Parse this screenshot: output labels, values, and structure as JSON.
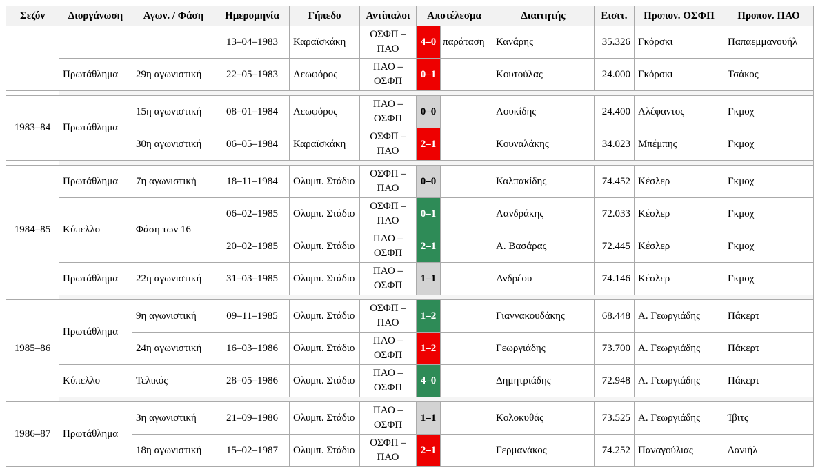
{
  "colors": {
    "win_osfp": "#ee0000",
    "win_pao": "#2e8b57",
    "draw": "#d3d3d3",
    "header_bg": "#f2f2f2",
    "border": "#aaaaaa",
    "separator_bg": "#f5f5f5"
  },
  "table": {
    "headers": [
      {
        "key": "season",
        "label": "Σεζόν"
      },
      {
        "key": "competition",
        "label": "Διοργάνωση"
      },
      {
        "key": "phase",
        "label": "Αγων. / Φάση"
      },
      {
        "key": "date",
        "label": "Ημερομηνία"
      },
      {
        "key": "venue",
        "label": "Γήπεδο"
      },
      {
        "key": "opponents",
        "label": "Αντίπαλοι"
      },
      {
        "key": "result",
        "label": "Αποτέλεσμα",
        "colspan": 2
      },
      {
        "key": "referee",
        "label": "Διαιτητής"
      },
      {
        "key": "tickets",
        "label": "Εισιτ."
      },
      {
        "key": "coach-osfp",
        "label": "Προπον. ΟΣΦΠ"
      },
      {
        "key": "coach-pao",
        "label": "Προπον. ΠΑΟ"
      }
    ],
    "sections": [
      {
        "rows": [
          [
            {
              "c": "season",
              "t": "",
              "rs": 2
            },
            {
              "c": "competition",
              "t": ""
            },
            {
              "c": "phase",
              "t": ""
            },
            {
              "c": "date",
              "t": "13–04–1983"
            },
            {
              "c": "venue",
              "t": "Καραϊσκάκη"
            },
            {
              "c": "opponents",
              "t": "ΟΣΦΠ – ΠΑΟ"
            },
            {
              "c": "score",
              "t": "4–0",
              "res": "osfp"
            },
            {
              "c": "note",
              "t": "παράταση"
            },
            {
              "c": "referee",
              "t": "Κανάρης"
            },
            {
              "c": "attendance",
              "t": "35.326"
            },
            {
              "c": "coach-osfp",
              "t": "Γκόρσκι"
            },
            {
              "c": "coach-pao",
              "t": "Παπαεμμανουήλ"
            }
          ],
          [
            {
              "c": "competition",
              "t": "Πρωτάθλημα"
            },
            {
              "c": "phase",
              "t": "29η αγωνιστική"
            },
            {
              "c": "date",
              "t": "22–05–1983"
            },
            {
              "c": "venue",
              "t": "Λεωφόρος"
            },
            {
              "c": "opponents",
              "t": "ΠΑΟ – ΟΣΦΠ"
            },
            {
              "c": "score",
              "t": "0–1",
              "res": "osfp"
            },
            {
              "c": "note",
              "t": ""
            },
            {
              "c": "referee",
              "t": "Κουτούλας"
            },
            {
              "c": "attendance",
              "t": "24.000"
            },
            {
              "c": "coach-osfp",
              "t": "Γκόρσκι"
            },
            {
              "c": "coach-pao",
              "t": "Τσάκος"
            }
          ]
        ]
      },
      {
        "rows": [
          [
            {
              "c": "season",
              "t": "1983–84",
              "rs": 2
            },
            {
              "c": "competition",
              "t": "Πρωτάθλημα",
              "rs": 2
            },
            {
              "c": "phase",
              "t": "15η αγωνιστική"
            },
            {
              "c": "date",
              "t": "08–01–1984"
            },
            {
              "c": "venue",
              "t": "Λεωφόρος"
            },
            {
              "c": "opponents",
              "t": "ΠΑΟ – ΟΣΦΠ"
            },
            {
              "c": "score",
              "t": "0–0",
              "res": "draw"
            },
            {
              "c": "note",
              "t": ""
            },
            {
              "c": "referee",
              "t": "Λουκίδης"
            },
            {
              "c": "attendance",
              "t": "24.400"
            },
            {
              "c": "coach-osfp",
              "t": "Αλέφαντος"
            },
            {
              "c": "coach-pao",
              "t": "Γκμοχ"
            }
          ],
          [
            {
              "c": "phase",
              "t": "30η αγωνιστική"
            },
            {
              "c": "date",
              "t": "06–05–1984"
            },
            {
              "c": "venue",
              "t": "Καραϊσκάκη"
            },
            {
              "c": "opponents",
              "t": "ΟΣΦΠ – ΠΑΟ"
            },
            {
              "c": "score",
              "t": "2–1",
              "res": "osfp"
            },
            {
              "c": "note",
              "t": ""
            },
            {
              "c": "referee",
              "t": "Κουναλάκης"
            },
            {
              "c": "attendance",
              "t": "34.023"
            },
            {
              "c": "coach-osfp",
              "t": "Μπέμπης"
            },
            {
              "c": "coach-pao",
              "t": "Γκμοχ"
            }
          ]
        ]
      },
      {
        "rows": [
          [
            {
              "c": "season",
              "t": "1984–85",
              "rs": 4
            },
            {
              "c": "competition",
              "t": "Πρωτάθλημα"
            },
            {
              "c": "phase",
              "t": "7η αγωνιστική"
            },
            {
              "c": "date",
              "t": "18–11–1984"
            },
            {
              "c": "venue",
              "t": "Ολυμπ. Στάδιο"
            },
            {
              "c": "opponents",
              "t": "ΟΣΦΠ – ΠΑΟ"
            },
            {
              "c": "score",
              "t": "0–0",
              "res": "draw"
            },
            {
              "c": "note",
              "t": ""
            },
            {
              "c": "referee",
              "t": "Καλπακίδης"
            },
            {
              "c": "attendance",
              "t": "74.452"
            },
            {
              "c": "coach-osfp",
              "t": "Κέσλερ"
            },
            {
              "c": "coach-pao",
              "t": "Γκμοχ"
            }
          ],
          [
            {
              "c": "competition",
              "t": "Κύπελλο",
              "rs": 2
            },
            {
              "c": "phase",
              "t": "Φάση των 16",
              "rs": 2
            },
            {
              "c": "date",
              "t": "06–02–1985"
            },
            {
              "c": "venue",
              "t": "Ολυμπ. Στάδιο"
            },
            {
              "c": "opponents",
              "t": "ΟΣΦΠ – ΠΑΟ"
            },
            {
              "c": "score",
              "t": "0–1",
              "res": "pao"
            },
            {
              "c": "note",
              "t": ""
            },
            {
              "c": "referee",
              "t": "Λανδράκης"
            },
            {
              "c": "attendance",
              "t": "72.033"
            },
            {
              "c": "coach-osfp",
              "t": "Κέσλερ"
            },
            {
              "c": "coach-pao",
              "t": "Γκμοχ"
            }
          ],
          [
            {
              "c": "date",
              "t": "20–02–1985"
            },
            {
              "c": "venue",
              "t": "Ολυμπ. Στάδιο"
            },
            {
              "c": "opponents",
              "t": "ΠΑΟ – ΟΣΦΠ"
            },
            {
              "c": "score",
              "t": "2–1",
              "res": "pao"
            },
            {
              "c": "note",
              "t": ""
            },
            {
              "c": "referee",
              "t": "Α. Βασάρας"
            },
            {
              "c": "attendance",
              "t": "72.445"
            },
            {
              "c": "coach-osfp",
              "t": "Κέσλερ"
            },
            {
              "c": "coach-pao",
              "t": "Γκμοχ"
            }
          ],
          [
            {
              "c": "competition",
              "t": "Πρωτάθλημα"
            },
            {
              "c": "phase",
              "t": "22η αγωνιστική"
            },
            {
              "c": "date",
              "t": "31–03–1985"
            },
            {
              "c": "venue",
              "t": "Ολυμπ. Στάδιο"
            },
            {
              "c": "opponents",
              "t": "ΠΑΟ – ΟΣΦΠ"
            },
            {
              "c": "score",
              "t": "1–1",
              "res": "draw"
            },
            {
              "c": "note",
              "t": ""
            },
            {
              "c": "referee",
              "t": "Ανδρέου"
            },
            {
              "c": "attendance",
              "t": "74.146"
            },
            {
              "c": "coach-osfp",
              "t": "Κέσλερ"
            },
            {
              "c": "coach-pao",
              "t": "Γκμοχ"
            }
          ]
        ]
      },
      {
        "rows": [
          [
            {
              "c": "season",
              "t": "1985–86",
              "rs": 3
            },
            {
              "c": "competition",
              "t": "Πρωτάθλημα",
              "rs": 2
            },
            {
              "c": "phase",
              "t": "9η αγωνιστική"
            },
            {
              "c": "date",
              "t": "09–11–1985"
            },
            {
              "c": "venue",
              "t": "Ολυμπ. Στάδιο"
            },
            {
              "c": "opponents",
              "t": "ΟΣΦΠ – ΠΑΟ"
            },
            {
              "c": "score",
              "t": "1–2",
              "res": "pao"
            },
            {
              "c": "note",
              "t": ""
            },
            {
              "c": "referee",
              "t": "Γιαννακουδάκης"
            },
            {
              "c": "attendance",
              "t": "68.448"
            },
            {
              "c": "coach-osfp",
              "t": "Α. Γεωργιάδης"
            },
            {
              "c": "coach-pao",
              "t": "Πάκερτ"
            }
          ],
          [
            {
              "c": "phase",
              "t": "24η αγωνιστική"
            },
            {
              "c": "date",
              "t": "16–03–1986"
            },
            {
              "c": "venue",
              "t": "Ολυμπ. Στάδιο"
            },
            {
              "c": "opponents",
              "t": "ΠΑΟ – ΟΣΦΠ"
            },
            {
              "c": "score",
              "t": "1–2",
              "res": "osfp"
            },
            {
              "c": "note",
              "t": ""
            },
            {
              "c": "referee",
              "t": "Γεωργιάδης"
            },
            {
              "c": "attendance",
              "t": "73.700"
            },
            {
              "c": "coach-osfp",
              "t": "Α. Γεωργιάδης"
            },
            {
              "c": "coach-pao",
              "t": "Πάκερτ"
            }
          ],
          [
            {
              "c": "competition",
              "t": "Κύπελλο"
            },
            {
              "c": "phase",
              "t": "Τελικός"
            },
            {
              "c": "date",
              "t": "28–05–1986"
            },
            {
              "c": "venue",
              "t": "Ολυμπ. Στάδιο"
            },
            {
              "c": "opponents",
              "t": "ΠΑΟ – ΟΣΦΠ"
            },
            {
              "c": "score",
              "t": "4–0",
              "res": "pao"
            },
            {
              "c": "note",
              "t": ""
            },
            {
              "c": "referee",
              "t": "Δημητριάδης"
            },
            {
              "c": "attendance",
              "t": "72.948"
            },
            {
              "c": "coach-osfp",
              "t": "Α. Γεωργιάδης"
            },
            {
              "c": "coach-pao",
              "t": "Πάκερτ"
            }
          ]
        ]
      },
      {
        "rows": [
          [
            {
              "c": "season",
              "t": "1986–87",
              "rs": 2
            },
            {
              "c": "competition",
              "t": "Πρωτάθλημα",
              "rs": 2
            },
            {
              "c": "phase",
              "t": "3η αγωνιστική"
            },
            {
              "c": "date",
              "t": "21–09–1986"
            },
            {
              "c": "venue",
              "t": "Ολυμπ. Στάδιο"
            },
            {
              "c": "opponents",
              "t": "ΠΑΟ – ΟΣΦΠ"
            },
            {
              "c": "score",
              "t": "1–1",
              "res": "draw"
            },
            {
              "c": "note",
              "t": ""
            },
            {
              "c": "referee",
              "t": "Κολοκυθάς"
            },
            {
              "c": "attendance",
              "t": "73.525"
            },
            {
              "c": "coach-osfp",
              "t": "Α. Γεωργιάδης"
            },
            {
              "c": "coach-pao",
              "t": "Ίβιτς"
            }
          ],
          [
            {
              "c": "phase",
              "t": "18η αγωνιστική"
            },
            {
              "c": "date",
              "t": "15–02–1987"
            },
            {
              "c": "venue",
              "t": "Ολυμπ. Στάδιο"
            },
            {
              "c": "opponents",
              "t": "ΟΣΦΠ – ΠΑΟ"
            },
            {
              "c": "score",
              "t": "2–1",
              "res": "osfp"
            },
            {
              "c": "note",
              "t": ""
            },
            {
              "c": "referee",
              "t": "Γερμανάκος"
            },
            {
              "c": "attendance",
              "t": "74.252"
            },
            {
              "c": "coach-osfp",
              "t": "Παναγούλιας"
            },
            {
              "c": "coach-pao",
              "t": "Δανιήλ"
            }
          ]
        ]
      }
    ]
  }
}
